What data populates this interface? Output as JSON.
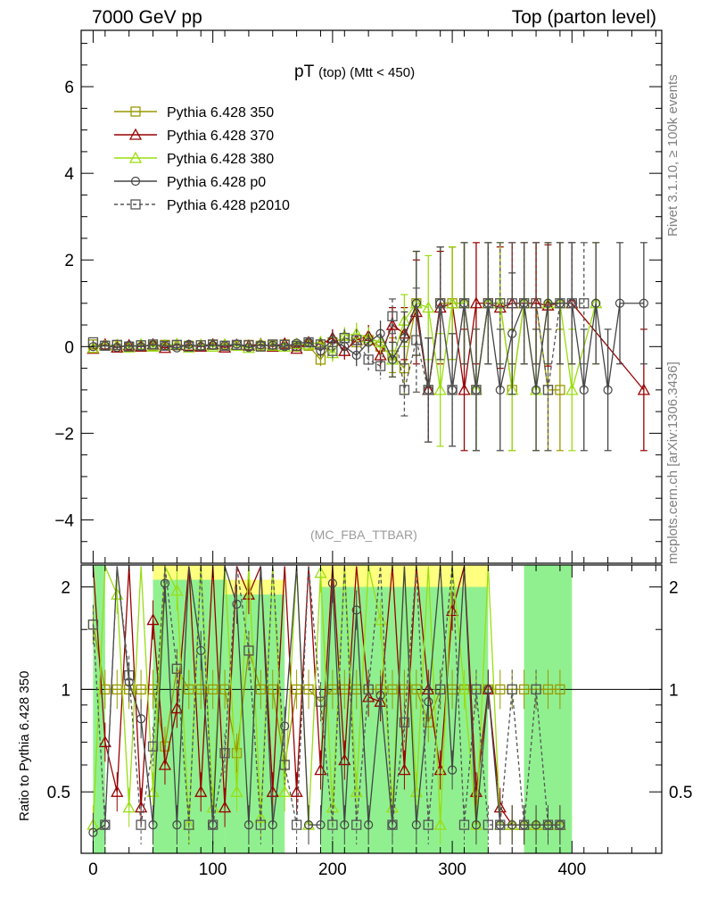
{
  "header": {
    "left": "7000 GeV pp",
    "right": "Top (parton level)"
  },
  "side_labels": {
    "rivet": "Rivet 3.1.10, ≥ 100k events",
    "mcplots": "mcplots.cern.ch [arXiv:1306.3436]"
  },
  "plot_title": {
    "main": "pT",
    "sub": "(top) (Mtt < 450)"
  },
  "analysis_label": "(MC_FBA_TTBAR)",
  "ratio_ylabel": "Ratio to Pythia 6.428 350",
  "chart_data": {
    "type": "line",
    "main_panel": {
      "xlim": [
        -10,
        475
      ],
      "ylim": [
        -5,
        7.3
      ],
      "yticks": [
        -4,
        -2,
        0,
        2,
        4,
        6
      ],
      "ytick_labels": [
        "−4",
        "−2",
        "0",
        "2",
        "4",
        "6"
      ]
    },
    "ratio_panel": {
      "ylim": [
        0.33,
        2.32
      ],
      "yticks": [
        0.5,
        1,
        2
      ],
      "ytick_labels": [
        "0.5",
        "1",
        "2"
      ],
      "band_colors": {
        "outer": "#ffff80",
        "inner": "#90f090"
      }
    },
    "xticks": [
      0,
      100,
      200,
      300,
      400
    ],
    "xtick_labels": [
      "0",
      "100",
      "200",
      "300",
      "400"
    ],
    "band_segments": [
      {
        "x": [
          0,
          10
        ],
        "outer": [
          0.33,
          2.32
        ],
        "inner": [
          0.33,
          2.32
        ]
      },
      {
        "x": [
          50,
          110
        ],
        "outer": [
          0.33,
          2.32
        ],
        "inner": [
          0.33,
          2.1
        ]
      },
      {
        "x": [
          110,
          160
        ],
        "outer": [
          0.33,
          2.1
        ],
        "inner": [
          0.33,
          1.9
        ]
      },
      {
        "x": [
          190,
          330
        ],
        "outer": [
          0.33,
          2.32
        ],
        "inner": [
          0.33,
          2.0
        ]
      },
      {
        "x": [
          360,
          400
        ],
        "outer": [
          0.33,
          2.32
        ],
        "inner": [
          0.33,
          2.32
        ]
      }
    ],
    "series": [
      {
        "name": "Pythia 6.428 350",
        "color": "#999900",
        "marker": "square",
        "dash": false,
        "x": [
          0,
          10,
          20,
          30,
          40,
          50,
          60,
          70,
          80,
          90,
          100,
          110,
          120,
          130,
          140,
          150,
          160,
          170,
          180,
          190,
          200,
          210,
          220,
          230,
          240,
          250,
          260,
          270,
          280,
          290,
          300,
          310,
          320,
          330,
          340,
          350,
          360,
          370,
          380,
          390
        ],
        "y": [
          0.05,
          0.02,
          0.03,
          0.0,
          0.03,
          0.02,
          0.04,
          0.03,
          0.02,
          0.03,
          0.04,
          0.02,
          0.03,
          0.04,
          0.02,
          0.03,
          0.05,
          0.0,
          0.02,
          -0.3,
          0.1,
          0.2,
          0.1,
          0.15,
          0.0,
          -0.2,
          -0.5,
          1.0,
          -1.0,
          1.0,
          1.0,
          1.0,
          -1.0,
          1.0,
          1.0,
          -1.0,
          1.0,
          1.0,
          -1.0,
          -1.0
        ],
        "yerr": [
          0.05,
          0.05,
          0.05,
          0.05,
          0.05,
          0.05,
          0.05,
          0.05,
          0.05,
          0.05,
          0.05,
          0.05,
          0.05,
          0.05,
          0.05,
          0.05,
          0.05,
          0.05,
          0.1,
          0.15,
          0.2,
          0.2,
          0.25,
          0.25,
          0.3,
          0.4,
          0.6,
          1.2,
          1.2,
          1.3,
          1.3,
          1.4,
          1.4,
          1.4,
          1.4,
          1.4,
          1.4,
          1.4,
          1.4,
          1.4
        ],
        "ratio": [
          1.55,
          1.0,
          1.0,
          1.0,
          1.0,
          1.0,
          0.68,
          1.15,
          1.0,
          1.0,
          1.0,
          1.0,
          0.65,
          1.3,
          1.0,
          1.0,
          0.6,
          1.0,
          1.0,
          0.92,
          1.0,
          1.0,
          1.0,
          1.0,
          1.0,
          1.0,
          1.0,
          1.0,
          0.8,
          1.0,
          1.0,
          1.0,
          1.0,
          1.0,
          1.0,
          1.0,
          1.0,
          1.0,
          1.0,
          1.0
        ]
      },
      {
        "name": "Pythia 6.428 370",
        "color": "#990000",
        "marker": "triangle",
        "dash": false,
        "x": [
          0,
          10,
          20,
          30,
          40,
          50,
          60,
          70,
          80,
          90,
          100,
          110,
          120,
          130,
          140,
          150,
          160,
          170,
          180,
          190,
          200,
          210,
          220,
          230,
          240,
          250,
          260,
          270,
          280,
          290,
          300,
          310,
          320,
          330,
          340,
          350,
          360,
          370,
          380,
          390,
          400,
          460
        ],
        "y": [
          -0.05,
          0.05,
          -0.02,
          0.03,
          0.0,
          0.05,
          -0.03,
          0.04,
          0.02,
          0.0,
          0.05,
          -0.02,
          0.04,
          0.02,
          0.06,
          0.0,
          0.07,
          -0.05,
          0.1,
          0.05,
          0.2,
          -0.1,
          0.15,
          0.25,
          -0.2,
          0.5,
          0.3,
          0.8,
          -1.0,
          0.9,
          1.0,
          -1.0,
          1.0,
          1.0,
          0.9,
          1.0,
          1.0,
          1.0,
          0.95,
          1.0,
          1.0,
          -1.0
        ],
        "yerr": [
          0.05,
          0.05,
          0.05,
          0.05,
          0.05,
          0.05,
          0.05,
          0.05,
          0.05,
          0.05,
          0.05,
          0.05,
          0.05,
          0.05,
          0.05,
          0.05,
          0.05,
          0.05,
          0.1,
          0.15,
          0.2,
          0.2,
          0.25,
          0.25,
          0.3,
          0.4,
          0.6,
          1.2,
          1.2,
          1.3,
          1.3,
          1.4,
          1.4,
          1.4,
          1.4,
          1.4,
          1.4,
          1.4,
          1.4,
          1.4,
          1.4,
          1.4
        ],
        "ratio": [
          2.3,
          0.7,
          0.5,
          2.3,
          0.45,
          1.6,
          0.6,
          0.88,
          2.3,
          0.5,
          2.3,
          0.45,
          2.3,
          1.9,
          2.3,
          0.5,
          2.3,
          0.5,
          2.3,
          0.58,
          2.3,
          0.62,
          2.3,
          0.95,
          0.92,
          2.3,
          0.58,
          2.3,
          1.0,
          0.58,
          1.7,
          2.3,
          0.5,
          1.0,
          0.45,
          0.4,
          0.4,
          0.4,
          0.4,
          0.4
        ]
      },
      {
        "name": "Pythia 6.428 380",
        "color": "#99dd11",
        "marker": "triangle",
        "dash": false,
        "x": [
          0,
          10,
          20,
          30,
          40,
          50,
          60,
          70,
          80,
          90,
          100,
          110,
          120,
          130,
          140,
          150,
          160,
          170,
          180,
          190,
          200,
          210,
          220,
          230,
          240,
          250,
          260,
          270,
          280,
          290,
          300,
          310,
          320,
          330,
          340,
          350,
          360,
          370,
          380,
          390,
          400,
          420
        ],
        "y": [
          -0.03,
          0.02,
          0.04,
          -0.02,
          0.05,
          0.0,
          0.03,
          0.06,
          -0.02,
          0.04,
          0.0,
          0.05,
          0.02,
          -0.03,
          0.05,
          0.02,
          0.0,
          0.06,
          0.05,
          0.1,
          -0.15,
          0.25,
          0.3,
          0.2,
          0.1,
          -0.3,
          0.6,
          1.0,
          0.9,
          -1.0,
          1.0,
          1.0,
          -1.0,
          1.0,
          1.0,
          -1.0,
          1.0,
          -1.0,
          1.0,
          1.0,
          -1.0,
          1.0
        ],
        "yerr": [
          0.05,
          0.05,
          0.05,
          0.05,
          0.05,
          0.05,
          0.05,
          0.05,
          0.05,
          0.05,
          0.05,
          0.05,
          0.05,
          0.05,
          0.05,
          0.05,
          0.05,
          0.05,
          0.1,
          0.15,
          0.2,
          0.2,
          0.25,
          0.25,
          0.3,
          0.4,
          0.6,
          1.2,
          1.2,
          1.3,
          1.3,
          1.4,
          1.4,
          1.4,
          1.4,
          1.4,
          1.4,
          1.4,
          1.4,
          1.4,
          1.4,
          1.4
        ],
        "ratio": [
          0.4,
          2.3,
          1.9,
          0.45,
          2.3,
          0.5,
          2.3,
          1.95,
          0.4,
          2.3,
          0.45,
          2.3,
          0.5,
          2.3,
          0.42,
          2.3,
          0.5,
          2.3,
          0.4,
          2.2,
          0.45,
          2.3,
          0.5,
          2.3,
          1.6,
          0.45,
          2.3,
          0.5,
          2.3,
          0.4,
          2.3,
          1.0,
          0.4,
          2.3,
          0.4,
          0.4,
          0.4,
          0.4,
          0.4,
          0.4
        ]
      },
      {
        "name": "Pythia 6.428 p0",
        "color": "#444444",
        "marker": "circle",
        "dash": false,
        "x": [
          0,
          10,
          20,
          30,
          40,
          50,
          60,
          70,
          80,
          90,
          100,
          110,
          120,
          130,
          140,
          150,
          160,
          170,
          180,
          190,
          200,
          210,
          220,
          230,
          240,
          250,
          260,
          270,
          280,
          290,
          300,
          310,
          320,
          330,
          340,
          350,
          360,
          370,
          380,
          390,
          400,
          410,
          420,
          430,
          440,
          460
        ],
        "y": [
          0.0,
          0.02,
          -0.02,
          0.03,
          0.0,
          0.04,
          0.02,
          -0.03,
          0.05,
          0.0,
          0.03,
          0.02,
          0.06,
          -0.02,
          0.04,
          0.03,
          0.0,
          0.08,
          0.1,
          -0.1,
          0.15,
          0.0,
          -0.2,
          0.1,
          0.3,
          -0.3,
          0.2,
          1.0,
          -1.0,
          1.0,
          -1.0,
          1.0,
          -1.0,
          1.0,
          -1.0,
          0.3,
          1.0,
          -1.0,
          1.0,
          1.0,
          1.0,
          -1.0,
          1.0,
          -1.0,
          1.0,
          1.0
        ],
        "yerr": [
          0.05,
          0.05,
          0.05,
          0.05,
          0.05,
          0.05,
          0.05,
          0.05,
          0.05,
          0.05,
          0.05,
          0.05,
          0.05,
          0.05,
          0.05,
          0.05,
          0.05,
          0.05,
          0.1,
          0.15,
          0.2,
          0.2,
          0.25,
          0.25,
          0.3,
          0.4,
          0.6,
          1.2,
          1.2,
          1.3,
          1.3,
          1.4,
          1.4,
          1.4,
          1.4,
          1.4,
          1.4,
          1.4,
          1.4,
          1.4,
          1.4,
          1.4,
          1.4,
          1.4,
          1.4,
          1.4
        ],
        "ratio": [
          0.38,
          0.4,
          2.3,
          1.05,
          0.82,
          0.4,
          2.05,
          0.4,
          2.3,
          1.3,
          0.4,
          2.3,
          1.78,
          0.4,
          2.3,
          0.4,
          0.78,
          2.3,
          0.4,
          0.4,
          2.05,
          0.4,
          1.71,
          0.4,
          0.96,
          0.4,
          2.3,
          0.4,
          0.92,
          2.3,
          0.58,
          2.3,
          0.4,
          1.0,
          0.4,
          0.4,
          0.4,
          0.4,
          0.4,
          0.4
        ]
      },
      {
        "name": "Pythia 6.428 p2010",
        "color": "#555555",
        "marker": "square",
        "dash": true,
        "x": [
          0,
          10,
          20,
          30,
          40,
          50,
          60,
          70,
          80,
          90,
          100,
          110,
          120,
          130,
          140,
          150,
          160,
          170,
          180,
          190,
          200,
          210,
          220,
          230,
          240,
          250,
          260,
          270,
          280,
          290,
          300,
          310,
          320,
          330,
          340,
          350,
          360,
          370,
          380,
          390,
          400,
          410
        ],
        "y": [
          0.1,
          0.02,
          0.04,
          0.0,
          0.03,
          0.05,
          0.02,
          0.04,
          0.0,
          0.03,
          0.05,
          0.02,
          0.04,
          0.03,
          0.0,
          0.05,
          0.04,
          0.02,
          0.1,
          0.05,
          -0.1,
          0.2,
          0.15,
          -0.3,
          -0.45,
          0.7,
          -1.0,
          0.15,
          -1.0,
          1.0,
          -1.0,
          1.0,
          -1.0,
          1.0,
          1.0,
          1.0,
          1.0,
          1.0,
          -1.0,
          1.0,
          1.0,
          1.0
        ],
        "yerr": [
          0.05,
          0.05,
          0.05,
          0.05,
          0.05,
          0.05,
          0.05,
          0.05,
          0.05,
          0.05,
          0.05,
          0.05,
          0.05,
          0.05,
          0.05,
          0.05,
          0.05,
          0.05,
          0.1,
          0.15,
          0.2,
          0.2,
          0.25,
          0.25,
          0.3,
          0.4,
          0.6,
          1.2,
          1.2,
          1.3,
          1.3,
          1.4,
          1.4,
          1.4,
          1.4,
          1.4,
          1.4,
          1.4,
          1.4,
          1.4,
          1.4,
          1.4
        ],
        "ratio": [
          1.55,
          0.4,
          2.3,
          1.1,
          0.4,
          0.68,
          2.3,
          1.15,
          0.4,
          2.3,
          0.4,
          0.65,
          2.3,
          1.3,
          0.4,
          2.3,
          0.6,
          0.4,
          2.3,
          0.92,
          0.4,
          2.3,
          0.4,
          1.0,
          2.3,
          0.4,
          0.8,
          2.3,
          0.4,
          1.0,
          2.3,
          0.4,
          1.0,
          0.4,
          0.4,
          1.0,
          0.4,
          1.0,
          0.4,
          0.4
        ]
      }
    ]
  }
}
